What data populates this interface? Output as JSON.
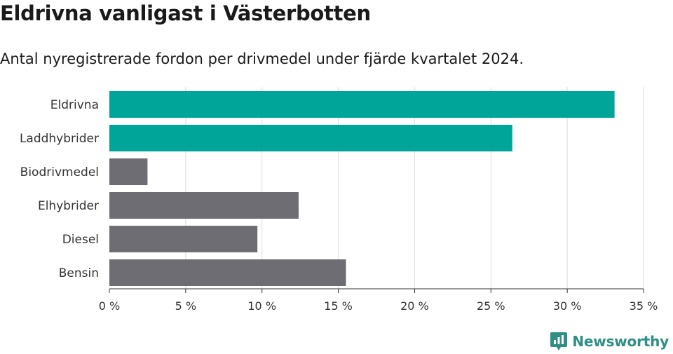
{
  "chart_data": {
    "type": "bar",
    "orientation": "horizontal",
    "title": "Eldrivna vanligast i Västerbotten",
    "subtitle": "Antal nyregistrerade fordon per drivmedel under fjärde kvartalet 2024.",
    "categories": [
      "Eldrivna",
      "Laddhybrider",
      "Biodrivmedel",
      "Elhybrider",
      "Diesel",
      "Bensin"
    ],
    "values": [
      33.1,
      26.4,
      2.5,
      12.4,
      9.7,
      15.5
    ],
    "highlighted": [
      true,
      true,
      false,
      false,
      false,
      false
    ],
    "xlim": [
      0,
      35
    ],
    "xticks": [
      0,
      5,
      10,
      15,
      20,
      25,
      30,
      35
    ],
    "xtick_labels": [
      "0 %",
      "5 %",
      "10 %",
      "15 %",
      "20 %",
      "25 %",
      "30 %",
      "35 %"
    ],
    "grid": true,
    "colors": {
      "highlight": "#00a59a",
      "default": "#6e6d73",
      "grid": "#dddddd",
      "axis": "#333333"
    }
  },
  "brand": {
    "name": "Newsworthy",
    "icon": "newsworthy-logo-icon",
    "color": "#2f8f85"
  }
}
